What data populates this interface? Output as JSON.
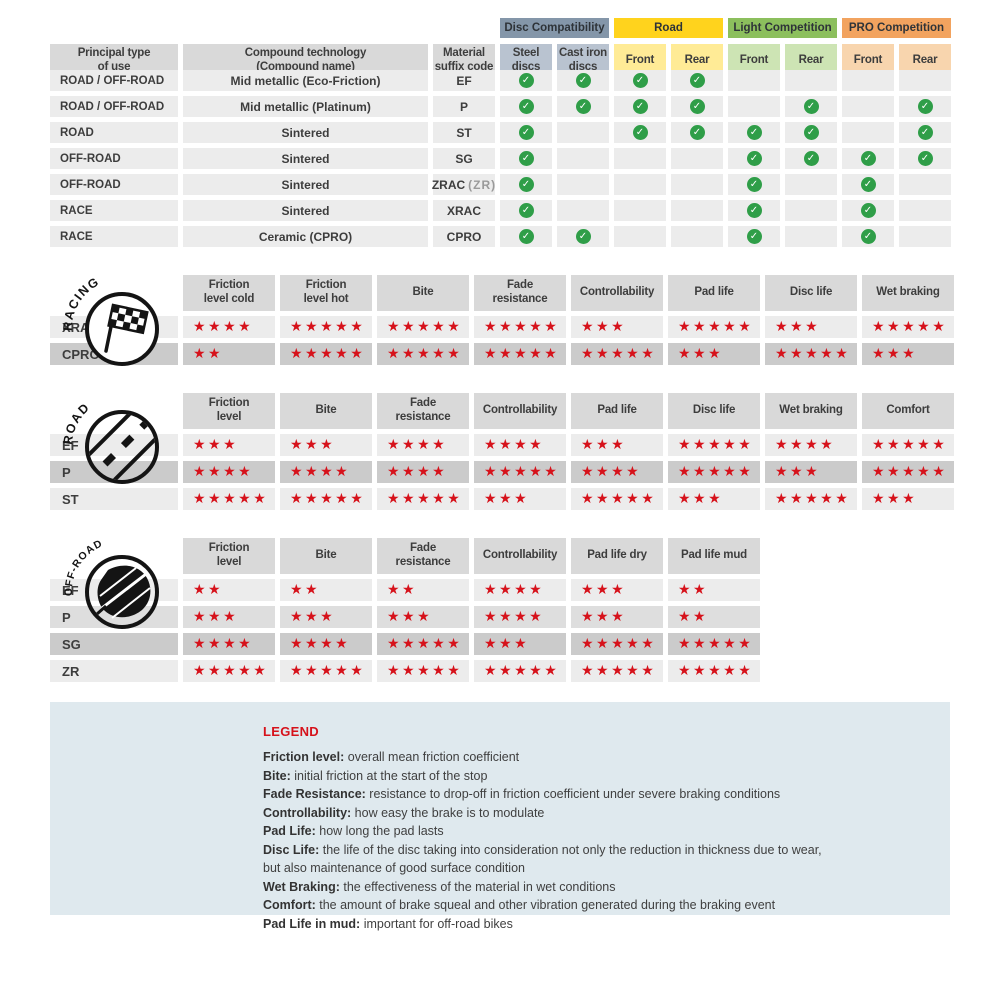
{
  "palette": {
    "header_gray": "#d9d9d9",
    "row_light": "#ececec",
    "row_medium": "#dedede",
    "row_dark": "#cbcbcb",
    "star_red": "#d6121b",
    "check_green": "#2f9e48",
    "legend_bg": "#dfe9ee",
    "legend_title_red": "#d6121b",
    "disc_group": "#8496a9",
    "disc_sub": "#b9c3d0",
    "road_group": "#ffd31d",
    "road_sub": "#ffeb96",
    "light_group": "#8cbf5d",
    "light_sub": "#cde4b4",
    "pro_group": "#f2a35f",
    "pro_sub": "#f8d5ae"
  },
  "glyphs": {
    "star": "★",
    "check": "✓"
  },
  "compat": {
    "headers": [
      "Principal type\nof use",
      "Compound technology\n(Compound name)",
      "Material\nsuffix code"
    ],
    "groups": [
      {
        "label": "Disc Compatibility",
        "color": "#8496a9",
        "sub_color": "#b9c3d0"
      },
      {
        "label": "Road",
        "color": "#ffd31d",
        "sub_color": "#ffeb96"
      },
      {
        "label": "Light Competition",
        "color": "#8cbf5d",
        "sub_color": "#cde4b4"
      },
      {
        "label": "PRO Competition",
        "color": "#f2a35f",
        "sub_color": "#f8d5ae"
      }
    ],
    "sub_headers": [
      "Steel\ndiscs",
      "Cast iron\ndiscs",
      "Front",
      "Rear",
      "Front",
      "Rear",
      "Front",
      "Rear"
    ],
    "rows": [
      {
        "use": "ROAD / OFF-ROAD",
        "tech": "Mid metallic (Eco-Friction)",
        "code": "EF",
        "code_suffix": "",
        "checks": [
          1,
          1,
          1,
          1,
          0,
          0,
          0,
          0
        ]
      },
      {
        "use": "ROAD / OFF-ROAD",
        "tech": "Mid metallic (Platinum)",
        "code": "P",
        "code_suffix": "",
        "checks": [
          1,
          1,
          1,
          1,
          0,
          1,
          0,
          1
        ]
      },
      {
        "use": "ROAD",
        "tech": "Sintered",
        "code": "ST",
        "code_suffix": "",
        "checks": [
          1,
          0,
          1,
          1,
          1,
          1,
          0,
          1
        ]
      },
      {
        "use": "OFF-ROAD",
        "tech": "Sintered",
        "code": "SG",
        "code_suffix": "",
        "checks": [
          1,
          0,
          0,
          0,
          1,
          1,
          1,
          1
        ]
      },
      {
        "use": "OFF-ROAD",
        "tech": "Sintered",
        "code": "ZRAC",
        "code_suffix": "(ZR)",
        "checks": [
          1,
          0,
          0,
          0,
          1,
          0,
          1,
          0
        ]
      },
      {
        "use": "RACE",
        "tech": "Sintered",
        "code": "XRAC",
        "code_suffix": "",
        "checks": [
          1,
          0,
          0,
          0,
          1,
          0,
          1,
          0
        ]
      },
      {
        "use": "RACE",
        "tech": "Ceramic (CPRO)",
        "code": "CPRO",
        "code_suffix": "",
        "checks": [
          1,
          1,
          0,
          0,
          1,
          0,
          1,
          0
        ]
      }
    ]
  },
  "sections": [
    {
      "label": "RACING",
      "columns": [
        "Friction\nlevel cold",
        "Friction\nlevel hot",
        "Bite",
        "Fade\nresistance",
        "Controllability",
        "Pad life",
        "Disc life",
        "Wet braking"
      ],
      "rows": [
        {
          "code": "XRAC",
          "shade": "light",
          "ratings": [
            4,
            5,
            5,
            5,
            3,
            5,
            3,
            5
          ]
        },
        {
          "code": "CPRO",
          "shade": "dark",
          "ratings": [
            2,
            5,
            5,
            5,
            5,
            3,
            5,
            3
          ]
        }
      ]
    },
    {
      "label": "ROAD",
      "columns": [
        "Friction\nlevel",
        "Bite",
        "Fade\nresistance",
        "Controllability",
        "Pad life",
        "Disc life",
        "Wet braking",
        "Comfort"
      ],
      "rows": [
        {
          "code": "EF",
          "shade": "light",
          "ratings": [
            3,
            3,
            4,
            4,
            3,
            5,
            4,
            5
          ]
        },
        {
          "code": "P",
          "shade": "dark",
          "ratings": [
            4,
            4,
            4,
            5,
            4,
            5,
            3,
            5
          ]
        },
        {
          "code": "ST",
          "shade": "light",
          "ratings": [
            5,
            5,
            5,
            3,
            5,
            3,
            5,
            3
          ]
        }
      ]
    },
    {
      "label": "OFF-ROAD",
      "columns": [
        "Friction\nlevel",
        "Bite",
        "Fade\nresistance",
        "Controllability",
        "Pad life dry",
        "Pad life mud"
      ],
      "rows": [
        {
          "code": "EF",
          "shade": "light",
          "ratings": [
            2,
            2,
            2,
            4,
            3,
            2
          ]
        },
        {
          "code": "P",
          "shade": "medium",
          "ratings": [
            3,
            3,
            3,
            4,
            3,
            2
          ]
        },
        {
          "code": "SG",
          "shade": "dark",
          "ratings": [
            4,
            4,
            5,
            3,
            5,
            5
          ]
        },
        {
          "code": "ZR",
          "shade": "light",
          "ratings": [
            5,
            5,
            5,
            5,
            5,
            5
          ]
        }
      ]
    }
  ],
  "legend": {
    "title": "LEGEND",
    "items": [
      {
        "term": "Friction level:",
        "desc": " overall mean friction coefficient"
      },
      {
        "term": "Bite:",
        "desc": " initial friction at the start of the stop"
      },
      {
        "term": "Fade Resistance:",
        "desc": " resistance to drop-off in friction coefficient under severe braking conditions"
      },
      {
        "term": "Controllability:",
        "desc": " how easy the brake is to modulate"
      },
      {
        "term": "Pad Life:",
        "desc": " how long the pad lasts"
      },
      {
        "term": "Disc Life:",
        "desc": " the life of the disc taking into consideration not only the reduction in thickness due to wear,"
      },
      {
        "term": "",
        "desc": "but also maintenance of good surface condition"
      },
      {
        "term": "Wet Braking:",
        "desc": " the effectiveness of the material in wet conditions"
      },
      {
        "term": "Comfort:",
        "desc": " the amount of brake squeal and other vibration generated during the braking event"
      },
      {
        "term": "Pad Life in mud:",
        "desc": " important for off-road bikes"
      }
    ]
  }
}
